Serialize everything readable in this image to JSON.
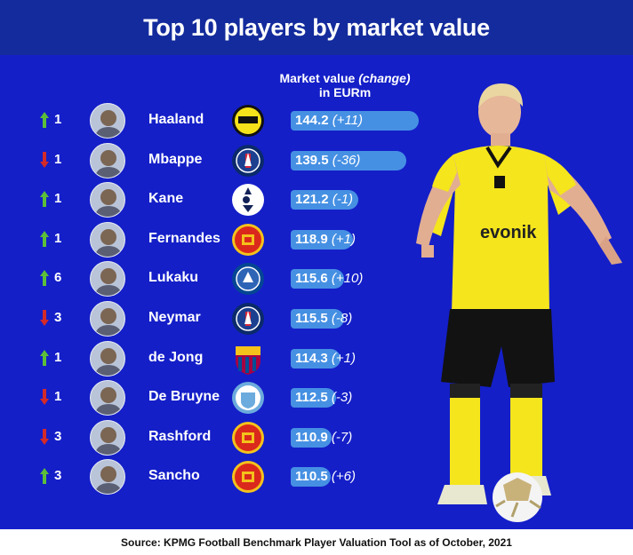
{
  "title": "Top 10 players by market value",
  "column_header": {
    "line1_prefix": "Market value ",
    "line1_italic": "(change)",
    "line2": "in EURm"
  },
  "source": "Source: KPMG Football Benchmark Player Valuation Tool as of October, 2021",
  "colors": {
    "header_bg": "#132b9c",
    "panel_bg": "#141fc8",
    "bar": "#4690e3",
    "arrow_up": "#5cbf3a",
    "arrow_down": "#d42a2a"
  },
  "chart_data": {
    "type": "bar",
    "orientation": "horizontal",
    "title": "Top 10 players by market value",
    "value_label": "Market value (change) in EURm",
    "rows": [
      {
        "rank_direction": "up",
        "rank_change": "1",
        "player": "Haaland",
        "club_icon": "bvb-crest",
        "value": 144.2,
        "value_text": "144.2",
        "change_text": "(+11)"
      },
      {
        "rank_direction": "down",
        "rank_change": "1",
        "player": "Mbappe",
        "club_icon": "psg-crest",
        "value": 139.5,
        "value_text": "139.5",
        "change_text": "(-36)"
      },
      {
        "rank_direction": "up",
        "rank_change": "1",
        "player": "Kane",
        "club_icon": "tottenham-crest",
        "value": 121.2,
        "value_text": "121.2",
        "change_text": "(-1)"
      },
      {
        "rank_direction": "up",
        "rank_change": "1",
        "player": "Fernandes",
        "club_icon": "man-united-crest",
        "value": 118.9,
        "value_text": "118.9",
        "change_text": "(+1)"
      },
      {
        "rank_direction": "up",
        "rank_change": "6",
        "player": "Lukaku",
        "club_icon": "chelsea-crest",
        "value": 115.6,
        "value_text": "115.6",
        "change_text": "(+10)"
      },
      {
        "rank_direction": "down",
        "rank_change": "3",
        "player": "Neymar",
        "club_icon": "psg-crest",
        "value": 115.5,
        "value_text": "115.5",
        "change_text": "(-8)"
      },
      {
        "rank_direction": "up",
        "rank_change": "1",
        "player": "de Jong",
        "club_icon": "barcelona-crest",
        "value": 114.3,
        "value_text": "114.3",
        "change_text": "(+1)"
      },
      {
        "rank_direction": "down",
        "rank_change": "1",
        "player": "De Bruyne",
        "club_icon": "man-city-crest",
        "value": 112.5,
        "value_text": "112.5",
        "change_text": "(-3)"
      },
      {
        "rank_direction": "down",
        "rank_change": "3",
        "player": "Rashford",
        "club_icon": "man-united-crest",
        "value": 110.9,
        "value_text": "110.9",
        "change_text": "(-7)"
      },
      {
        "rank_direction": "up",
        "rank_change": "3",
        "player": "Sancho",
        "club_icon": "man-united-crest",
        "value": 110.5,
        "value_text": "110.5",
        "change_text": "(+6)"
      }
    ]
  }
}
